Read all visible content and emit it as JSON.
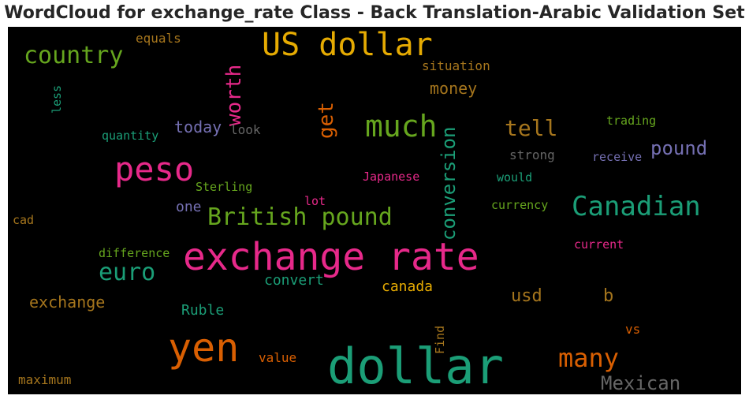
{
  "chart_data": {
    "type": "wordcloud",
    "title": "WordCloud for exchange_rate Class - Back Translation-Arabic Validation Set",
    "words": [
      {
        "text": "dollar",
        "color": "#1b9e77"
      },
      {
        "text": "exchange rate",
        "color": "#e7298a"
      },
      {
        "text": "yen",
        "color": "#d95f02"
      },
      {
        "text": "US dollar",
        "color": "#e6ab02"
      },
      {
        "text": "peso",
        "color": "#e7298a"
      },
      {
        "text": "much",
        "color": "#66a61e"
      },
      {
        "text": "Canadian",
        "color": "#1b9e77"
      },
      {
        "text": "British pound",
        "color": "#66a61e"
      },
      {
        "text": "country",
        "color": "#66a61e"
      },
      {
        "text": "euro",
        "color": "#1b9e77"
      },
      {
        "text": "many",
        "color": "#d95f02"
      },
      {
        "text": "conversion",
        "color": "#1b9e77"
      },
      {
        "text": "worth",
        "color": "#e7298a"
      },
      {
        "text": "tell",
        "color": "#a6761d"
      },
      {
        "text": "get",
        "color": "#d95f02"
      },
      {
        "text": "pound",
        "color": "#7570b3"
      },
      {
        "text": "Mexican",
        "color": "#666666"
      },
      {
        "text": "usd",
        "color": "#a6761d"
      },
      {
        "text": "b",
        "color": "#a6761d"
      },
      {
        "text": "exchange",
        "color": "#a6761d"
      },
      {
        "text": "money",
        "color": "#a6761d"
      },
      {
        "text": "today",
        "color": "#7570b3"
      },
      {
        "text": "canada",
        "color": "#e6ab02"
      },
      {
        "text": "convert",
        "color": "#1b9e77"
      },
      {
        "text": "Ruble",
        "color": "#1b9e77"
      },
      {
        "text": "one",
        "color": "#7570b3"
      },
      {
        "text": "situation",
        "color": "#a6761d"
      },
      {
        "text": "equals",
        "color": "#a6761d"
      },
      {
        "text": "less",
        "color": "#1b9e77"
      },
      {
        "text": "look",
        "color": "#666666"
      },
      {
        "text": "quantity",
        "color": "#1b9e77"
      },
      {
        "text": "trading",
        "color": "#66a61e"
      },
      {
        "text": "strong",
        "color": "#666666"
      },
      {
        "text": "receive",
        "color": "#7570b3"
      },
      {
        "text": "Japanese",
        "color": "#e7298a"
      },
      {
        "text": "would",
        "color": "#1b9e77"
      },
      {
        "text": "Sterling",
        "color": "#66a61e"
      },
      {
        "text": "lot",
        "color": "#e7298a"
      },
      {
        "text": "currency",
        "color": "#66a61e"
      },
      {
        "text": "cad",
        "color": "#a6761d"
      },
      {
        "text": "difference",
        "color": "#66a61e"
      },
      {
        "text": "current",
        "color": "#e7298a"
      },
      {
        "text": "vs",
        "color": "#d95f02"
      },
      {
        "text": "value",
        "color": "#d95f02"
      },
      {
        "text": "maximum",
        "color": "#a6761d"
      },
      {
        "text": "Find",
        "color": "#a6761d"
      }
    ]
  }
}
